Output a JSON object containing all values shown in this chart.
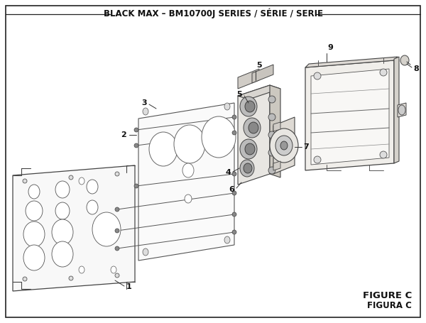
{
  "title": "BLACK MAX – BM10700J SERIES / SÉRIE / SERIE",
  "figure_label": "FIGURE C",
  "figura_label": "FIGURA C",
  "bg_color": "#ffffff",
  "lc": "#333333",
  "title_fontsize": 8.5,
  "label_fontsize": 8,
  "fig_label_fontsize": 9.5
}
